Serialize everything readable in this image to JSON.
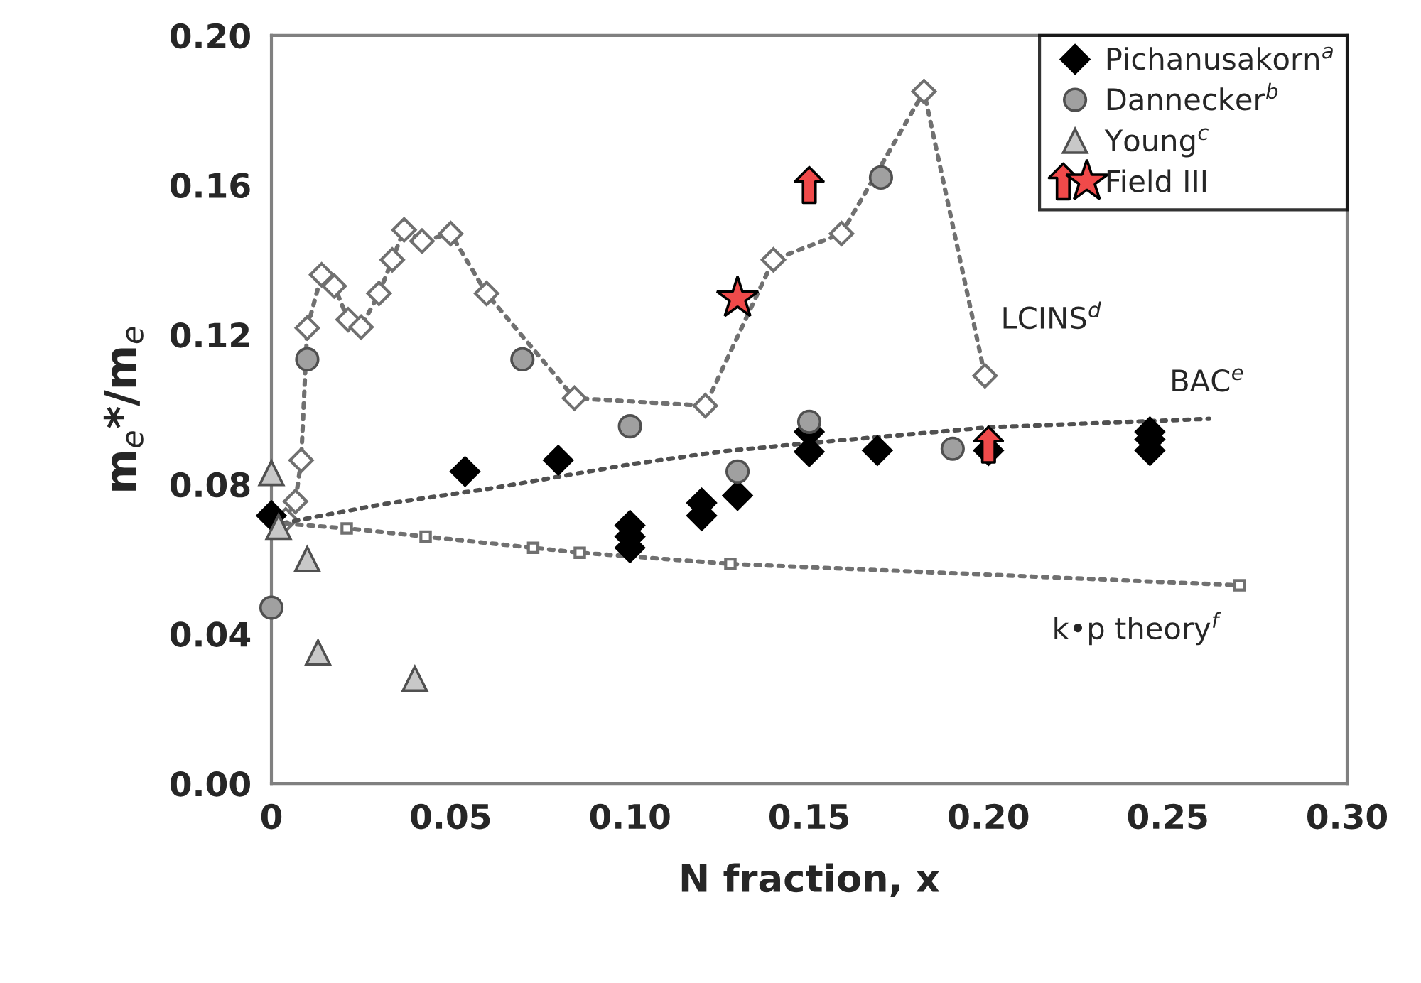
{
  "chart_data": {
    "type": "scatter",
    "xlabel": "N fraction, x",
    "ylabel": "m$_{e}$*/m$_{e}$",
    "xlim": [
      0,
      0.3
    ],
    "ylim": [
      0,
      0.2
    ],
    "xticks": [
      0,
      0.05,
      {
        "value": 0.1,
        "label": "0.10"
      },
      0.15,
      {
        "value": 0.2,
        "label": "0.20"
      },
      0.25,
      {
        "value": 0.3,
        "label": "0.30"
      }
    ],
    "yticks": [
      {
        "value": 0,
        "label": "0.00"
      },
      0.04,
      0.08,
      {
        "value": 0.12,
        "label": "0.12"
      },
      0.16,
      {
        "value": 0.2,
        "label": "0.20"
      }
    ],
    "grid": false,
    "legend": "top right",
    "series": [
      {
        "name": "Pichanusakorn$^{a}$",
        "marker": "diamond",
        "color": "#000000",
        "x": [
          0,
          0.054,
          0.08,
          0.1,
          0.1,
          0.1,
          0.12,
          0.12,
          0.13,
          0.15,
          0.15,
          0.169,
          0.2,
          0.245,
          0.245,
          0.245
        ],
        "values": [
          0.0716,
          0.0834,
          0.0864,
          0.069,
          0.066,
          0.063,
          0.075,
          0.0716,
          0.077,
          0.0887,
          0.094,
          0.089,
          0.089,
          0.094,
          0.092,
          0.089
        ]
      },
      {
        "name": "Dannecker$^{b}$",
        "marker": "circle",
        "color": "#a0a0a0",
        "x": [
          0,
          0.01,
          0.07,
          0.1,
          0.13,
          0.15,
          0.17,
          0.19
        ],
        "values": [
          0.047,
          0.1134,
          0.1134,
          0.0955,
          0.0834,
          0.0967,
          0.162,
          0.0895
        ]
      },
      {
        "name": "Young$^{c}$",
        "marker": "triangle",
        "color": "#c8c8c8",
        "x": [
          0,
          0.002,
          0.01,
          0.013,
          0.04
        ],
        "values": [
          0.083,
          0.0686,
          0.06,
          0.035,
          0.028
        ]
      },
      {
        "color": "#f04a4a",
        "x": [
          0.15,
          0.2
        ],
        "values": [
          0.16,
          0.0906
        ]
      },
      {
        "name": "Field III",
        "marker": "star",
        "color": "#f04a4a",
        "x": [
          0.13
        ],
        "values": [
          0.1297
        ]
      },
      {
        "type": "line",
        "marker": "diamond",
        "line_style": "dotted",
        "color": "#707070",
        "x": [
          0.004,
          0.0067,
          0.0083,
          0.01,
          0.014,
          0.0175,
          0.0214,
          0.025,
          0.03,
          0.0337,
          0.037,
          0.042,
          0.05,
          0.06,
          0.0845,
          0.121,
          0.14,
          0.159,
          0.182,
          0.199
        ],
        "values": [
          0.0705,
          0.0754,
          0.0864,
          0.1218,
          0.136,
          0.133,
          0.124,
          0.122,
          0.131,
          0.14,
          0.148,
          0.145,
          0.147,
          0.131,
          0.103,
          0.101,
          0.14,
          0.147,
          0.185,
          0.109
        ]
      },
      {
        "type": "line",
        "marker": "none",
        "line_style": "dotted",
        "color": "#505050",
        "x": [
          0,
          0.03,
          0.062,
          0.1,
          0.125,
          0.15,
          0.2,
          0.2615
        ],
        "values": [
          0.069,
          0.0745,
          0.079,
          0.0853,
          0.0887,
          0.091,
          0.0952,
          0.0975
        ]
      },
      {
        "type": "line",
        "marker": "square",
        "line_style": "dotted",
        "color": "#707070",
        "x": [
          0.0008,
          0.021,
          0.043,
          0.073,
          0.086,
          0.128,
          0.27
        ],
        "values": [
          0.0697,
          0.0682,
          0.066,
          0.063,
          0.0617,
          0.0587,
          0.053
        ]
      }
    ],
    "annotations": [
      "LCINS$^{d}$",
      "BAC$^{e}$",
      "k•p theory$^{f}$"
    ]
  }
}
